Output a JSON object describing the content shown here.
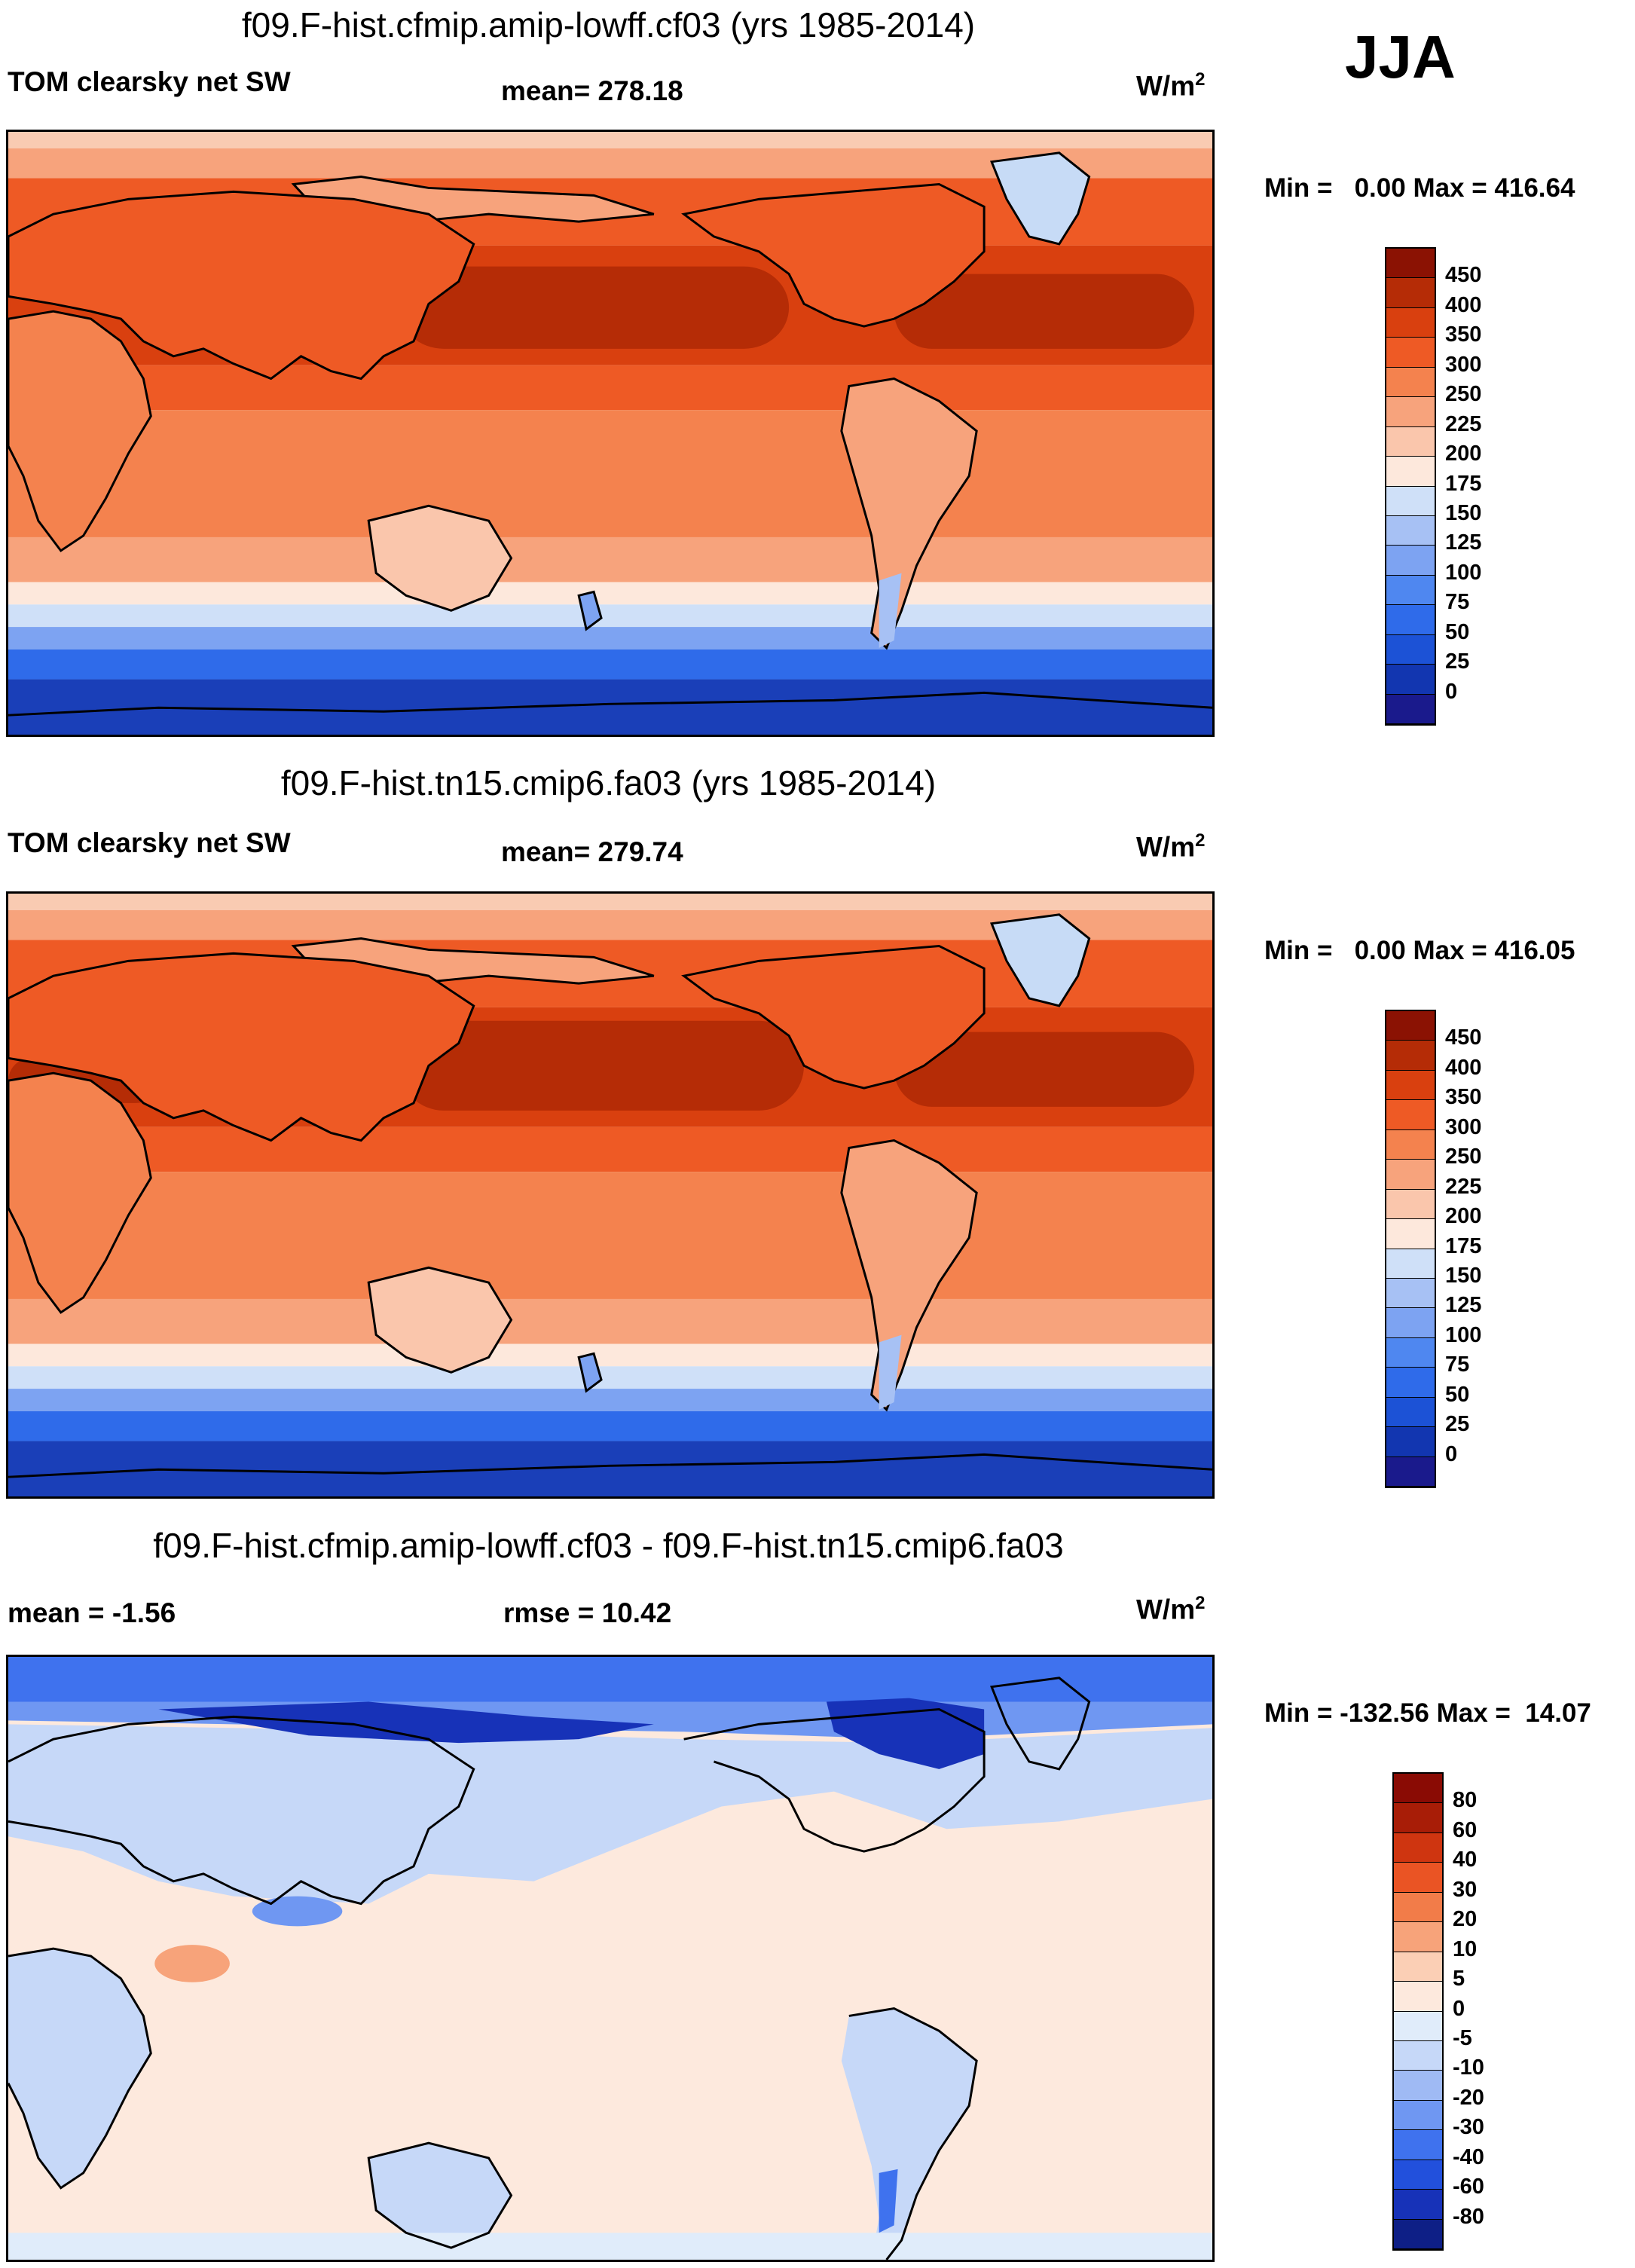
{
  "season": "JJA",
  "units_base": "W/m",
  "units_sup": "2",
  "colors": {
    "sw_palette": [
      "#1a1a8c",
      "#1236b0",
      "#1c52d6",
      "#2f6bea",
      "#4f87f0",
      "#7da3f2",
      "#a7c1f4",
      "#cfe0f8",
      "#fde8dc",
      "#fac6ac",
      "#f7a37c",
      "#f4824e",
      "#ee5a25",
      "#d9400f",
      "#b52c06",
      "#8b1203"
    ],
    "diff_palette": [
      "#0e1f86",
      "#1732b8",
      "#2250dc",
      "#3f72ee",
      "#6f97f2",
      "#9fbaf4",
      "#c6d8f8",
      "#e0ecfa",
      "#fde9dd",
      "#fbcfb5",
      "#f7a37a",
      "#f27c49",
      "#ea5424",
      "#cf3510",
      "#a81d07",
      "#8a0b04"
    ]
  },
  "panels": [
    {
      "title": "f09.F-hist.cfmip.amip-lowff.cf03 (yrs 1985-2014)",
      "left_label": "TOM clearsky net SW",
      "center_label": "mean= 278.18",
      "min_max": "Min =   0.00 Max = 416.64",
      "colorbar_ticks": [
        "450",
        "400",
        "350",
        "300",
        "250",
        "225",
        "200",
        "175",
        "150",
        "125",
        "100",
        "75",
        "50",
        "25",
        "0"
      ]
    },
    {
      "title": "f09.F-hist.tn15.cmip6.fa03 (yrs 1985-2014)",
      "left_label": "TOM clearsky net SW",
      "center_label": "mean= 279.74",
      "min_max": "Min =   0.00 Max = 416.05",
      "colorbar_ticks": [
        "450",
        "400",
        "350",
        "300",
        "250",
        "225",
        "200",
        "175",
        "150",
        "125",
        "100",
        "75",
        "50",
        "25",
        "0"
      ]
    },
    {
      "title": "f09.F-hist.cfmip.amip-lowff.cf03 - f09.F-hist.tn15.cmip6.fa03",
      "left_label": "mean =  -1.56",
      "center_label": "rmse =  10.42",
      "min_max": "Min = -132.56 Max =  14.07",
      "colorbar_ticks": [
        "80",
        "60",
        "40",
        "30",
        "20",
        "10",
        "5",
        "0",
        "-5",
        "-10",
        "-20",
        "-30",
        "-40",
        "-60",
        "-80"
      ]
    }
  ]
}
